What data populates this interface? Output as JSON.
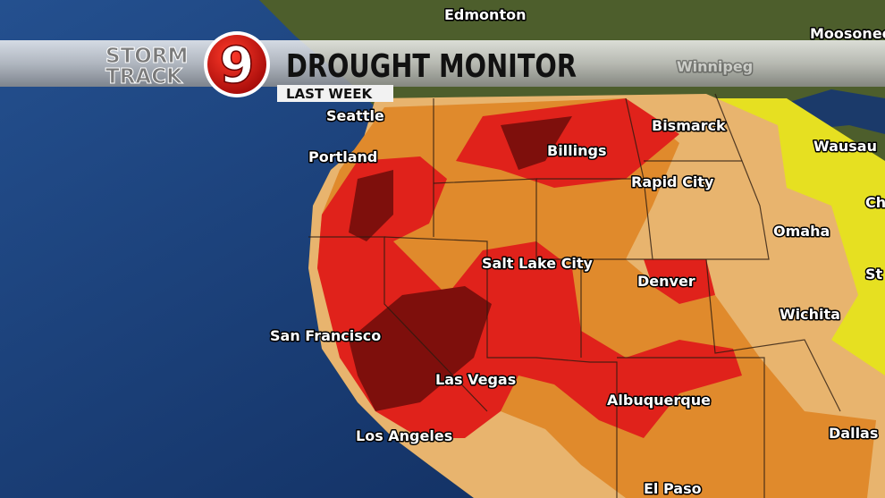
{
  "logo": {
    "line1": "STORM",
    "line2": "TRACK",
    "number": "9"
  },
  "title": "DROUGHT MONITOR",
  "subtitle": "LAST WEEK",
  "cities": [
    "Edmonton",
    "Moosonee",
    "Winnipeg",
    "Seattle",
    "Portland",
    "Billings",
    "Bismarck",
    "Wausau",
    "Rapid City",
    "Omaha",
    "Ch",
    "Salt Lake City",
    "Denver",
    "St",
    "San Francisco",
    "Wichita",
    "Las Vegas",
    "Albuquerque",
    "Los Angeles",
    "Dallas",
    "El Paso"
  ]
}
